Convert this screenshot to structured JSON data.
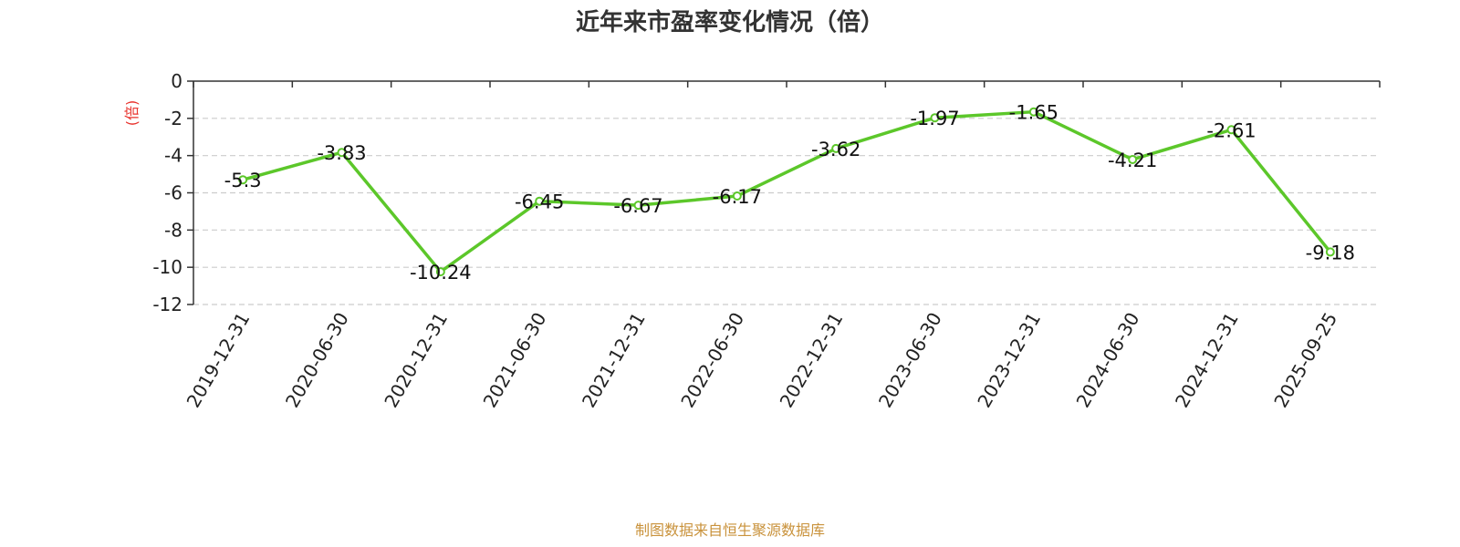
{
  "chart_data": {
    "type": "line",
    "title": "近年来市盈率变化情况（倍）",
    "ylabel": "(倍)",
    "xlabel": "",
    "categories": [
      "2019-12-31",
      "2020-06-30",
      "2020-12-31",
      "2021-06-30",
      "2021-12-31",
      "2022-06-30",
      "2022-12-31",
      "2023-06-30",
      "2023-12-31",
      "2024-06-30",
      "2024-12-31",
      "2025-09-25"
    ],
    "values": [
      -5.3,
      -3.83,
      -10.24,
      -6.45,
      -6.67,
      -6.17,
      -3.62,
      -1.97,
      -1.65,
      -4.21,
      -2.61,
      -9.18
    ],
    "data_labels": [
      "-5.3",
      "-3.83",
      "-10.24",
      "-6.45",
      "-6.67",
      "-6.17",
      "-3.62",
      "-1.97",
      "-1.65",
      "-4.21",
      "-2.61",
      "-9.18"
    ],
    "ylim": [
      -12,
      0
    ],
    "yticks": [
      0,
      -2,
      -4,
      -6,
      -8,
      -10,
      -12
    ],
    "ytick_labels": [
      "0",
      "-2",
      "-4",
      "-6",
      "-8",
      "-10",
      "-12"
    ],
    "grid": true,
    "legend": "none",
    "colors": {
      "line": "#5cc72a",
      "ylabel": "#e8322c",
      "grid": "#cccccc",
      "axis": "#333333"
    }
  },
  "footer": {
    "source_note": "制图数据来自恒生聚源数据库"
  }
}
